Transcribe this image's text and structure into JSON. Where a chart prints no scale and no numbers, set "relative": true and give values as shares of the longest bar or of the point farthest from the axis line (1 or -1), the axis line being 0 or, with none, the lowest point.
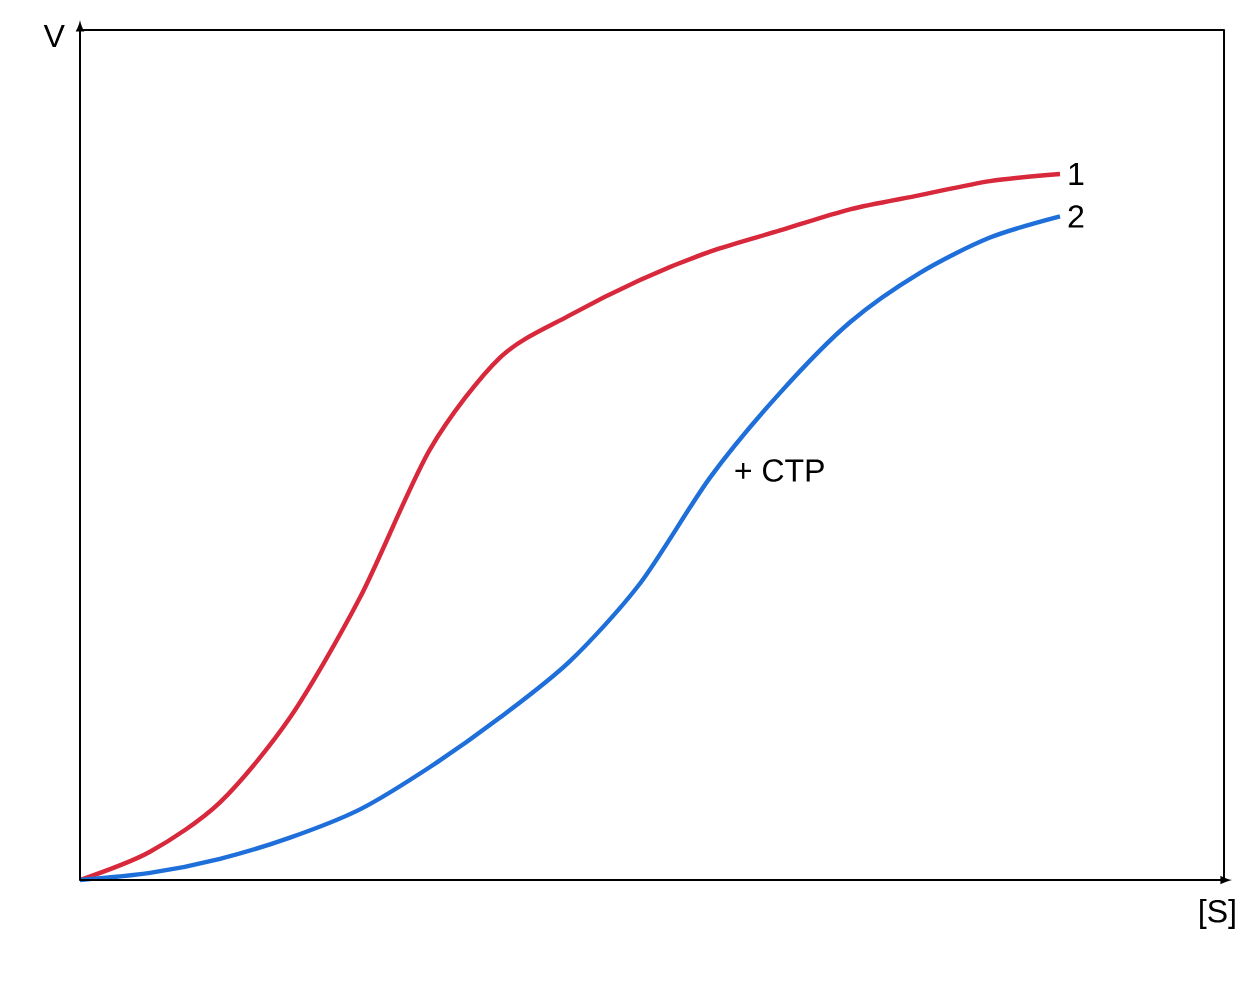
{
  "chart_data": {
    "type": "line",
    "relative": true,
    "xlabel": "[S]",
    "ylabel": "V",
    "categories": [
      null,
      null,
      null,
      null,
      null,
      null,
      null,
      null,
      null,
      null,
      null,
      null,
      null,
      null,
      null
    ],
    "series": [
      {
        "name": "1",
        "color": "#d8283c",
        "values": [
          0,
          0.04,
          0.11,
          0.23,
          0.4,
          0.61,
          0.74,
          0.8,
          0.85,
          0.89,
          0.92,
          0.95,
          0.97,
          0.99,
          1
        ]
      },
      {
        "name": "2",
        "color": "#1e6fd9",
        "values": [
          0,
          0.01,
          0.03,
          0.06,
          0.1,
          0.16,
          0.23,
          0.31,
          0.42,
          0.57,
          0.69,
          0.79,
          0.86,
          0.91,
          0.94
        ]
      }
    ],
    "annotations": [
      "+ CTP"
    ],
    "marker": "none",
    "line_style": "solid"
  }
}
